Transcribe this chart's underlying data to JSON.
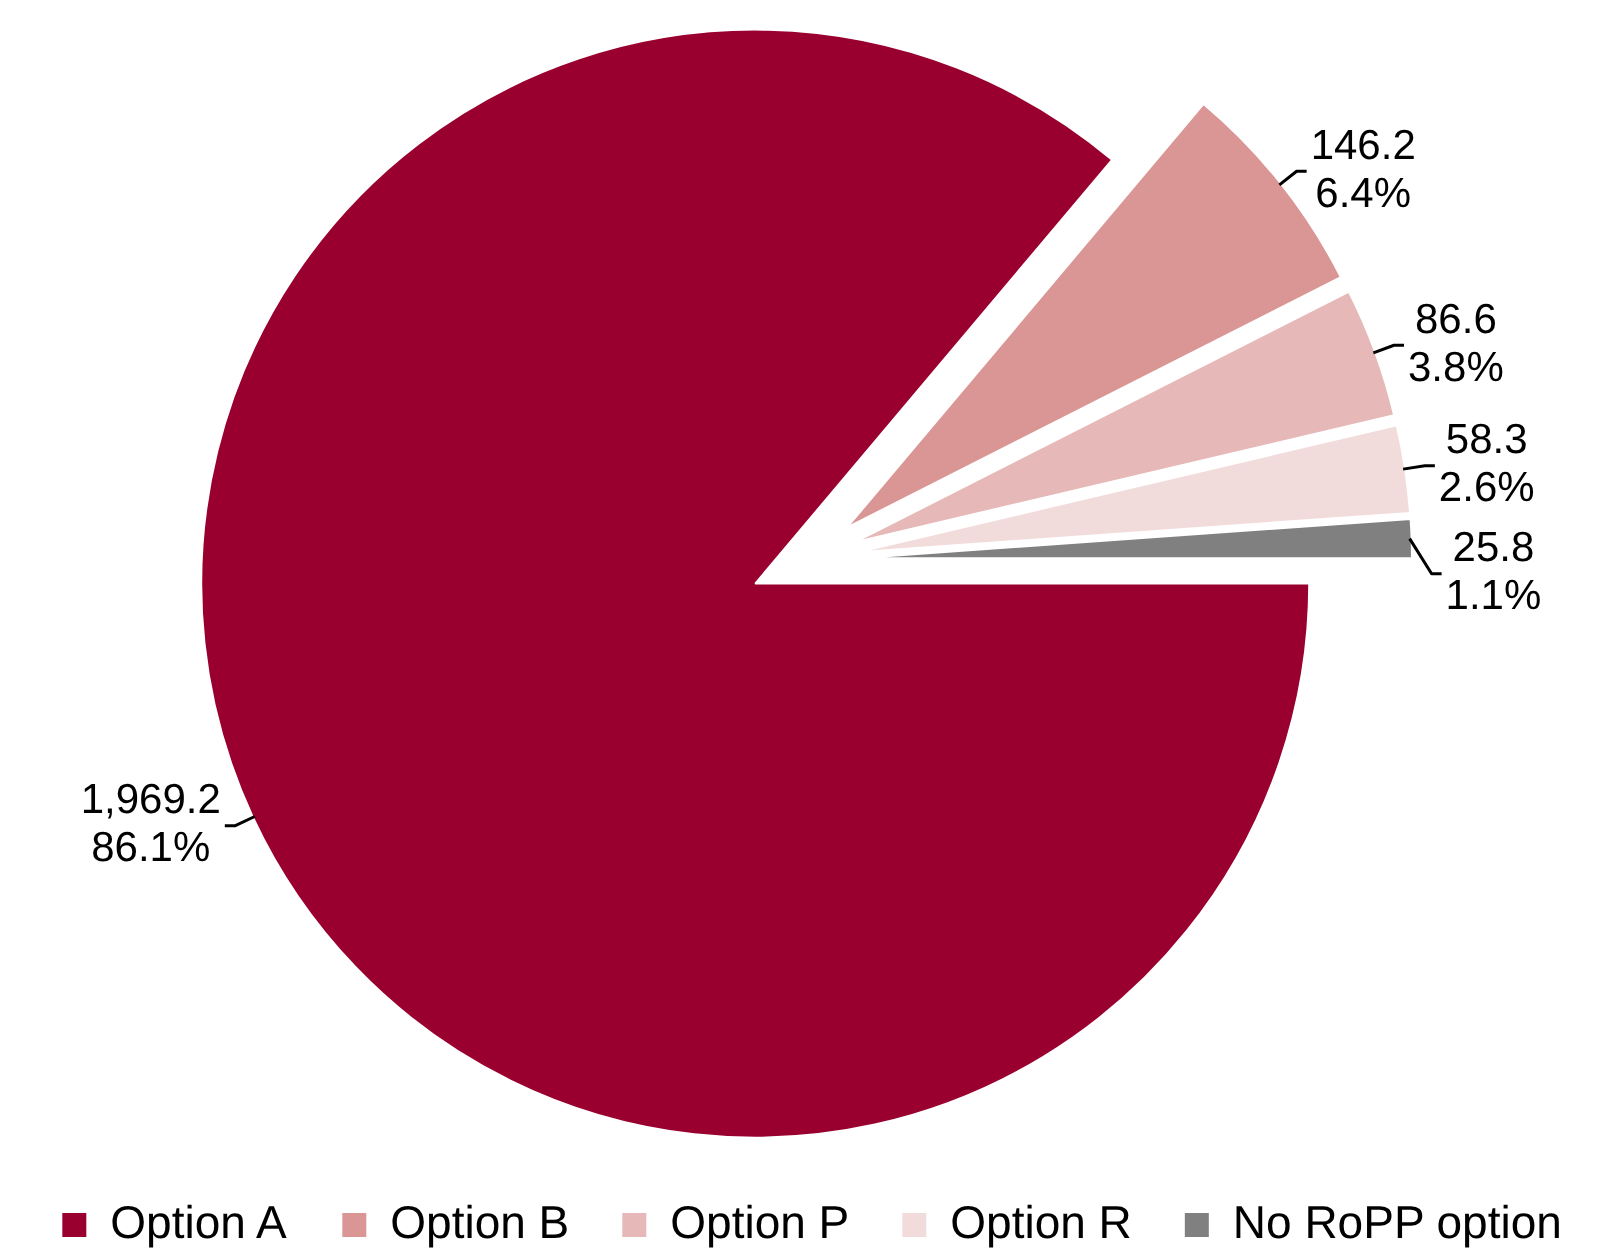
{
  "chart_data": {
    "type": "pie",
    "categories": [
      "Option A",
      "Option B",
      "Option P",
      "Option R",
      "No RoPP option"
    ],
    "values": [
      1969.2,
      146.2,
      86.6,
      58.3,
      25.8
    ],
    "colors": [
      "#990030",
      "#d99694",
      "#e6b9b8",
      "#f2dcdb",
      "#808080"
    ],
    "value_labels": [
      "1,969.2\n86.1%",
      "146.2\n6.4%",
      "86.6\n3.8%",
      "58.3\n2.6%",
      "25.8\n1.1%"
    ],
    "legend": "bottom"
  }
}
